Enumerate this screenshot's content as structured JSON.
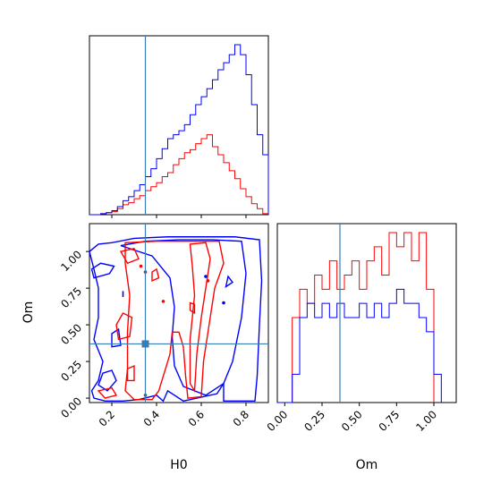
{
  "chart_data": [
    {
      "panel": "H0 marginal",
      "type": "histogram",
      "x_range": [
        0.1,
        0.9
      ],
      "truth_line_x": 0.35,
      "colors": [
        "#ff0000",
        "#0000ff"
      ],
      "truth_color": "#3a7db5",
      "series": [
        {
          "bin_edges": [
            0.1,
            0.125,
            0.15,
            0.175,
            0.2,
            0.225,
            0.25,
            0.275,
            0.3,
            0.325,
            0.35,
            0.375,
            0.4,
            0.425,
            0.45,
            0.475,
            0.5,
            0.525,
            0.55,
            0.575,
            0.6,
            0.625,
            0.65,
            0.675,
            0.7,
            0.725,
            0.75,
            0.775,
            0.8,
            0.825,
            0.85,
            0.875,
            0.9
          ],
          "counts": [
            0,
            0,
            1,
            2,
            3,
            6,
            10,
            12,
            16,
            19,
            24,
            28,
            32,
            38,
            42,
            50,
            56,
            62,
            65,
            71,
            76,
            80,
            68,
            60,
            52,
            44,
            36,
            26,
            18,
            11,
            6,
            1
          ]
        },
        {
          "bin_edges": [
            0.1,
            0.125,
            0.15,
            0.175,
            0.2,
            0.225,
            0.25,
            0.275,
            0.3,
            0.325,
            0.35,
            0.375,
            0.4,
            0.425,
            0.45,
            0.475,
            0.5,
            0.525,
            0.55,
            0.575,
            0.6,
            0.625,
            0.65,
            0.675,
            0.7,
            0.725,
            0.75,
            0.775,
            0.8,
            0.825,
            0.85,
            0.875,
            0.9
          ],
          "counts": [
            0,
            0,
            1,
            2,
            4,
            8,
            14,
            18,
            24,
            30,
            38,
            46,
            56,
            66,
            76,
            80,
            84,
            90,
            100,
            110,
            118,
            126,
            135,
            145,
            152,
            160,
            170,
            160,
            140,
            110,
            80,
            60
          ]
        }
      ]
    },
    {
      "panel": "H0 vs Om joint",
      "type": "contour",
      "x_range": [
        0.1,
        0.9
      ],
      "y_range": [
        -0.03,
        1.19
      ],
      "xlabel": "H0",
      "ylabel": "Om",
      "x_ticks": [
        "0.2",
        "0.4",
        "0.6",
        "0.8"
      ],
      "y_ticks": [
        "0.00",
        "0.25",
        "0.50",
        "0.75",
        "1.00"
      ],
      "truth_point": [
        0.35,
        0.37
      ],
      "colors": [
        "#ff0000",
        "#0000ff"
      ],
      "truth_color": "#3a7db5"
    },
    {
      "panel": "Om marginal",
      "type": "histogram",
      "x_range": [
        -0.05,
        1.15
      ],
      "xlabel": "Om",
      "x_ticks": [
        "0.00",
        "0.25",
        "0.50",
        "0.75",
        "1.00"
      ],
      "truth_line_x": 0.37,
      "colors": [
        "#ff0000",
        "#0000ff"
      ],
      "truth_color": "#3a7db5",
      "series": [
        {
          "bin_edges": [
            0.0,
            0.05,
            0.1,
            0.15,
            0.2,
            0.25,
            0.3,
            0.35,
            0.4,
            0.45,
            0.5,
            0.55,
            0.6,
            0.65,
            0.7,
            0.75,
            0.8,
            0.85,
            0.9,
            0.95,
            1.0
          ],
          "counts": [
            0,
            6,
            8,
            7,
            9,
            8,
            10,
            8,
            9,
            10,
            8,
            10,
            11,
            9,
            12,
            11,
            12,
            10,
            12,
            8
          ]
        },
        {
          "bin_edges": [
            -0.05,
            0.0,
            0.05,
            0.1,
            0.15,
            0.2,
            0.25,
            0.3,
            0.35,
            0.4,
            0.45,
            0.5,
            0.55,
            0.6,
            0.65,
            0.7,
            0.75,
            0.8,
            0.85,
            0.9,
            0.95,
            1.0,
            1.05
          ],
          "counts": [
            0,
            0,
            2,
            6,
            7,
            6,
            7,
            6,
            7,
            6,
            6,
            7,
            6,
            7,
            6,
            7,
            8,
            7,
            7,
            6,
            5,
            2
          ]
        }
      ]
    }
  ]
}
